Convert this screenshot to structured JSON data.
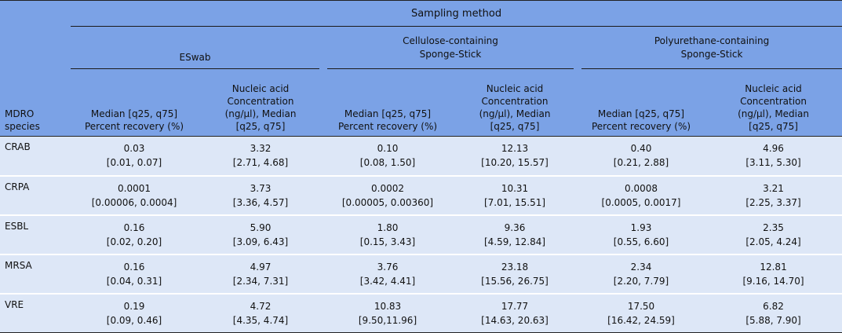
{
  "header": {
    "group_label": "Sampling method",
    "species_label_line1": "MDRO",
    "species_label_line2": "species",
    "methods": [
      {
        "line1": "ESwab",
        "line2": ""
      },
      {
        "line1": "Cellulose-containing",
        "line2": "Sponge-Stick"
      },
      {
        "line1": "Polyurethane-containing",
        "line2": "Sponge-Stick"
      }
    ],
    "sub_recovery_line1": "Median [q25, q75]",
    "sub_recovery_line2": "Percent recovery (%)",
    "sub_conc_line1": "Nucleic acid",
    "sub_conc_line2": "Concentration",
    "sub_conc_line3": "(ng/µl), Median",
    "sub_conc_line4": "[q25, q75]"
  },
  "rows": [
    {
      "species": "CRAB",
      "cells": [
        {
          "median": "0.03",
          "iqr": "[0.01, 0.07]"
        },
        {
          "median": "3.32",
          "iqr": "[2.71, 4.68]"
        },
        {
          "median": "0.10",
          "iqr": "[0.08, 1.50]"
        },
        {
          "median": "12.13",
          "iqr": "[10.20, 15.57]"
        },
        {
          "median": "0.40",
          "iqr": "[0.21, 2.88]"
        },
        {
          "median": "4.96",
          "iqr": "[3.11, 5.30]"
        }
      ]
    },
    {
      "species": "CRPA",
      "cells": [
        {
          "median": "0.0001",
          "iqr": "[0.00006, 0.0004]"
        },
        {
          "median": "3.73",
          "iqr": "[3.36, 4.57]"
        },
        {
          "median": "0.0002",
          "iqr": "[0.00005, 0.00360]"
        },
        {
          "median": "10.31",
          "iqr": "[7.01, 15.51]"
        },
        {
          "median": "0.0008",
          "iqr": "[0.0005, 0.0017]"
        },
        {
          "median": "3.21",
          "iqr": "[2.25, 3.37]"
        }
      ]
    },
    {
      "species": "ESBL",
      "cells": [
        {
          "median": "0.16",
          "iqr": "[0.02, 0.20]"
        },
        {
          "median": "5.90",
          "iqr": "[3.09, 6.43]"
        },
        {
          "median": "1.80",
          "iqr": "[0.15, 3.43]"
        },
        {
          "median": "9.36",
          "iqr": "[4.59, 12.84]"
        },
        {
          "median": "1.93",
          "iqr": "[0.55, 6.60]"
        },
        {
          "median": "2.35",
          "iqr": "[2.05, 4.24]"
        }
      ]
    },
    {
      "species": "MRSA",
      "cells": [
        {
          "median": "0.16",
          "iqr": "[0.04, 0.31]"
        },
        {
          "median": "4.97",
          "iqr": "[2.34, 7.31]"
        },
        {
          "median": "3.76",
          "iqr": "[3.42, 4.41]"
        },
        {
          "median": "23.18",
          "iqr": "[15.56, 26.75]"
        },
        {
          "median": "2.34",
          "iqr": "[2.20, 7.79]"
        },
        {
          "median": "12.81",
          "iqr": "[9.16, 14.70]"
        }
      ]
    },
    {
      "species": "VRE",
      "cells": [
        {
          "median": "0.19",
          "iqr": "[0.09, 0.46]"
        },
        {
          "median": "4.72",
          "iqr": "[4.35, 4.74]"
        },
        {
          "median": "10.83",
          "iqr": "[9.50,11.96]"
        },
        {
          "median": "17.77",
          "iqr": "[14.63, 20.63]"
        },
        {
          "median": "17.50",
          "iqr": "[16.42, 24.59]"
        },
        {
          "median": "6.82",
          "iqr": "[5.88, 7.90]"
        }
      ]
    }
  ]
}
